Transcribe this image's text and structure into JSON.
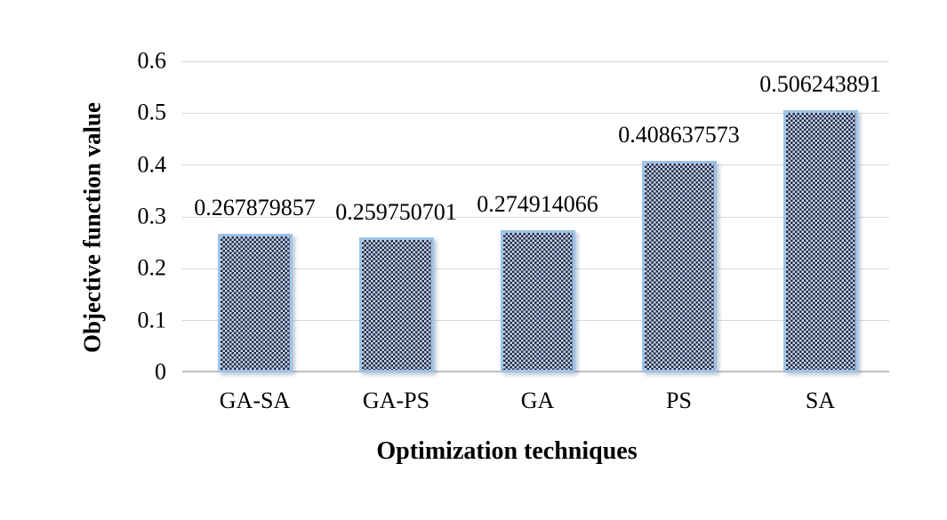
{
  "chart_data": {
    "type": "bar",
    "title": "",
    "categories": [
      "GA-SA",
      "GA-PS",
      "GA",
      "PS",
      "SA"
    ],
    "values": [
      0.267879857,
      0.259750701,
      0.274914066,
      0.408637573,
      0.506243891
    ],
    "value_labels": [
      "0.267879857",
      "0.259750701",
      "0.274914066",
      "0.408637573",
      "0.506243891"
    ],
    "xlabel": "Optimization techniques",
    "ylabel": "Objective function value",
    "ylim": [
      0,
      0.6
    ],
    "yticks": [
      0,
      0.1,
      0.2,
      0.3,
      0.4,
      0.5,
      0.6
    ],
    "ytick_labels": [
      "0",
      "0.1",
      "0.2",
      "0.3",
      "0.4",
      "0.5",
      "0.6"
    ],
    "grid": "horizontal-only",
    "legend": "none",
    "series_name": "Objective function value",
    "colors": {
      "background": "#ffffff",
      "bar_border": "#9dc3e6",
      "bar_pattern_dark": "#1d2c4f",
      "bar_pattern_light": "#ccd3e2",
      "gridline": "#d6d6d6",
      "axis_line": "#bfbfbf",
      "text": "#000000"
    }
  }
}
